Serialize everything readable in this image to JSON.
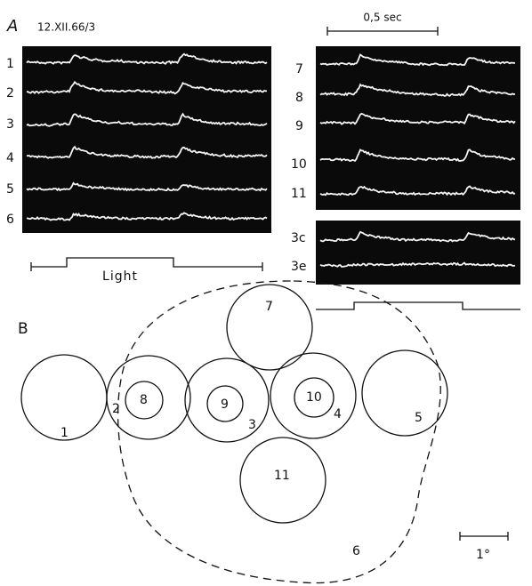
{
  "panel_a": {
    "label": "A",
    "date": "12.XII.66/3",
    "time_scale": "0,5 sec",
    "left_traces": [
      "1",
      "2",
      "3",
      "4",
      "5",
      "6"
    ],
    "right_traces": [
      "7",
      "8",
      "9",
      "10",
      "11"
    ],
    "control_traces": [
      "3c",
      "3e"
    ],
    "stimulus": "Light"
  },
  "panel_b": {
    "label": "B",
    "fields": [
      "1",
      "2",
      "3",
      "4",
      "5",
      "6",
      "7",
      "8",
      "9",
      "10",
      "11"
    ],
    "scale": "1°"
  }
}
